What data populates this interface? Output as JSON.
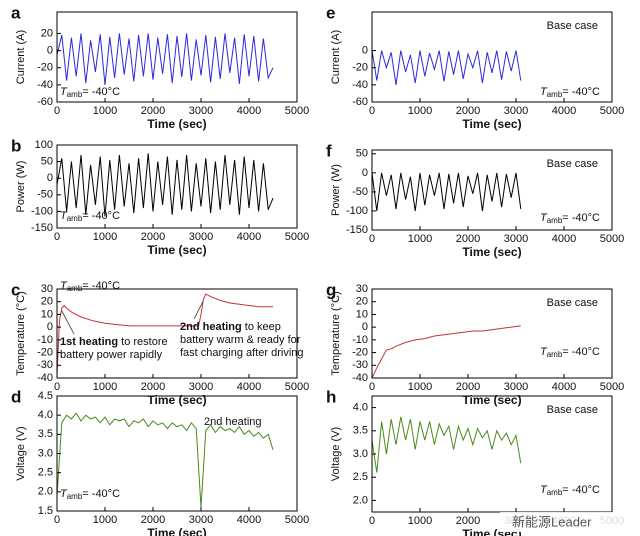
{
  "chart_data": [
    {
      "type": "line",
      "panel": "a",
      "ylabel": "Current (A)",
      "xlabel": "Time (sec)",
      "color": "#2a2ae0",
      "xlim": [
        0,
        5000
      ],
      "xticks": [
        0,
        1000,
        2000,
        3000,
        4000,
        5000
      ],
      "ylim": [
        -60,
        45
      ],
      "yticks": [
        -60,
        -40,
        -20,
        0,
        20
      ],
      "x": [
        0,
        100,
        200,
        300,
        400,
        500,
        600,
        700,
        800,
        900,
        1000,
        1100,
        1200,
        1300,
        1400,
        1500,
        1600,
        1700,
        1800,
        1900,
        2000,
        2100,
        2200,
        2300,
        2400,
        2500,
        2600,
        2700,
        2800,
        2900,
        3000,
        3100,
        3200,
        3300,
        3400,
        3500,
        3600,
        3700,
        3800,
        3900,
        4000,
        4100,
        4200,
        4300,
        4400,
        4500
      ],
      "values": [
        -5,
        18,
        -35,
        15,
        -30,
        20,
        -38,
        12,
        -25,
        19,
        -40,
        16,
        -32,
        20,
        -28,
        14,
        -36,
        18,
        -30,
        20,
        -34,
        15,
        -27,
        19,
        -38,
        17,
        -31,
        20,
        -35,
        13,
        -29,
        18,
        -37,
        16,
        -33,
        20,
        -26,
        15,
        -39,
        19,
        -30,
        17,
        -36,
        14,
        -32,
        -20
      ],
      "tamb": {
        "symbol": "T",
        "subscript": "amb",
        "text": "= -40°C"
      }
    },
    {
      "type": "line",
      "panel": "b",
      "ylabel": "Power (W)",
      "xlabel": "Time (sec)",
      "color": "#000000",
      "xlim": [
        0,
        5000
      ],
      "xticks": [
        0,
        1000,
        2000,
        3000,
        4000,
        5000
      ],
      "ylim": [
        -150,
        100
      ],
      "yticks": [
        -150,
        -100,
        -50,
        0,
        50,
        100
      ],
      "x": [
        0,
        100,
        200,
        300,
        400,
        500,
        600,
        700,
        800,
        900,
        1000,
        1100,
        1200,
        1300,
        1400,
        1500,
        1600,
        1700,
        1800,
        1900,
        2000,
        2100,
        2200,
        2300,
        2400,
        2500,
        2600,
        2700,
        2800,
        2900,
        3000,
        3100,
        3200,
        3300,
        3400,
        3500,
        3600,
        3700,
        3800,
        3900,
        4000,
        4100,
        4200,
        4300,
        4400,
        4500
      ],
      "values": [
        -20,
        60,
        -100,
        50,
        -90,
        70,
        -110,
        40,
        -80,
        65,
        -115,
        55,
        -95,
        70,
        -85,
        45,
        -105,
        60,
        -90,
        75,
        -100,
        50,
        -80,
        65,
        -110,
        55,
        -95,
        70,
        -100,
        45,
        -85,
        60,
        -105,
        50,
        -95,
        70,
        -80,
        55,
        -110,
        65,
        -90,
        55,
        -100,
        45,
        -95,
        -60
      ],
      "tamb": {
        "symbol": "T",
        "subscript": "amb",
        "text": "= -40°C"
      }
    },
    {
      "type": "line",
      "panel": "c",
      "ylabel": "Temperature (°C)",
      "xlabel": "Time (sec)",
      "color": "#c8323c",
      "xlim": [
        0,
        5000
      ],
      "xticks": [
        0,
        1000,
        2000,
        3000,
        4000,
        5000
      ],
      "ylim": [
        -40,
        30
      ],
      "yticks": [
        -40,
        -30,
        -20,
        -10,
        0,
        10,
        20,
        30
      ],
      "x": [
        0,
        50,
        100,
        150,
        200,
        300,
        500,
        750,
        1000,
        1250,
        1500,
        1750,
        2000,
        2250,
        2500,
        2750,
        2950,
        3000,
        3050,
        3100,
        3200,
        3400,
        3600,
        3800,
        4000,
        4200,
        4400,
        4500
      ],
      "values": [
        -38,
        5,
        15,
        17,
        15,
        12,
        8,
        5,
        3,
        2,
        1,
        1,
        1,
        1,
        1,
        1,
        1,
        10,
        22,
        26,
        24,
        21,
        19,
        18,
        17,
        16,
        16,
        16
      ],
      "tamb": {
        "symbol": "T",
        "subscript": "amb",
        "text": "= -40°C"
      },
      "notes": [
        {
          "bold": "1st heating",
          "lines": [
            " to restore",
            "battery power rapidly"
          ]
        },
        {
          "bold": "2nd heating",
          "lines": [
            " to keep",
            "battery warm & ready for",
            "fast charging after driving"
          ]
        }
      ]
    },
    {
      "type": "line",
      "panel": "d",
      "ylabel": "Voltage (V)",
      "xlabel": "Time (sec)",
      "color": "#4a8a1c",
      "xlim": [
        0,
        5000
      ],
      "xticks": [
        0,
        1000,
        2000,
        3000,
        4000,
        5000
      ],
      "ylim": [
        1.5,
        4.5
      ],
      "yticks": [
        1.5,
        {
          "value": 2,
          "label": "2.0"
        },
        2.5,
        {
          "value": 3,
          "label": "3.0"
        },
        3.5,
        {
          "value": 4,
          "label": "4.0"
        },
        4.5
      ],
      "x": [
        0,
        100,
        200,
        300,
        400,
        500,
        600,
        700,
        800,
        900,
        1000,
        1100,
        1200,
        1300,
        1400,
        1500,
        1600,
        1700,
        1800,
        1900,
        2000,
        2100,
        2200,
        2300,
        2400,
        2500,
        2600,
        2700,
        2800,
        2900,
        3000,
        3100,
        3200,
        3300,
        3400,
        3500,
        3600,
        3700,
        3800,
        3900,
        4000,
        4100,
        4200,
        4300,
        4400,
        4500
      ],
      "values": [
        1.9,
        3.8,
        4.0,
        3.9,
        4.05,
        3.85,
        4.0,
        3.9,
        3.95,
        3.8,
        3.95,
        3.75,
        3.9,
        3.85,
        3.9,
        3.7,
        3.85,
        3.8,
        3.9,
        3.7,
        3.85,
        3.75,
        3.8,
        3.65,
        3.8,
        3.7,
        3.75,
        3.6,
        3.8,
        3.65,
        1.6,
        3.6,
        3.75,
        3.55,
        3.7,
        3.6,
        3.65,
        3.55,
        3.7,
        3.5,
        3.6,
        3.45,
        3.55,
        3.4,
        3.5,
        3.1
      ],
      "tamb": {
        "symbol": "T",
        "subscript": "amb",
        "text": "= -40°C"
      },
      "note": "2nd heating"
    },
    {
      "type": "line",
      "panel": "e",
      "ylabel": "Current (A)",
      "xlabel": "Time (sec)",
      "color": "#2a2ae0",
      "case": "Base case",
      "xlim": [
        0,
        5000
      ],
      "xticks": [
        0,
        1000,
        2000,
        3000,
        4000,
        5000
      ],
      "ylim": [
        -60,
        45
      ],
      "yticks": [
        -60,
        -40,
        -20,
        0
      ],
      "x": [
        0,
        100,
        200,
        300,
        400,
        500,
        600,
        700,
        800,
        900,
        1000,
        1100,
        1200,
        1300,
        1400,
        1500,
        1600,
        1700,
        1800,
        1900,
        2000,
        2100,
        2200,
        2300,
        2400,
        2500,
        2600,
        2700,
        2800,
        2900,
        3000,
        3100
      ],
      "values": [
        0,
        -35,
        0,
        -20,
        -2,
        -40,
        0,
        -25,
        -5,
        -38,
        0,
        -30,
        -3,
        -22,
        0,
        -36,
        -1,
        -28,
        0,
        -33,
        -4,
        -20,
        0,
        -38,
        -2,
        -26,
        0,
        -34,
        -1,
        -24,
        0,
        -35
      ],
      "tamb": {
        "symbol": "T",
        "subscript": "amb",
        "text": "= -40°C"
      }
    },
    {
      "type": "line",
      "panel": "f",
      "ylabel": "Power (W)",
      "xlabel": "Time (sec)",
      "color": "#000000",
      "case": "Base case",
      "xlim": [
        0,
        5000
      ],
      "xticks": [
        0,
        1000,
        2000,
        3000,
        4000,
        5000
      ],
      "ylim": [
        -150,
        60
      ],
      "yticks": [
        -150,
        -100,
        -50,
        0,
        50
      ],
      "x": [
        0,
        100,
        200,
        300,
        400,
        500,
        600,
        700,
        800,
        900,
        1000,
        1100,
        1200,
        1300,
        1400,
        1500,
        1600,
        1700,
        1800,
        1900,
        2000,
        2100,
        2200,
        2300,
        2400,
        2500,
        2600,
        2700,
        2800,
        2900,
        3000,
        3100
      ],
      "values": [
        0,
        -100,
        0,
        -60,
        -5,
        -95,
        0,
        -70,
        -10,
        -100,
        0,
        -85,
        -5,
        -60,
        0,
        -95,
        -3,
        -80,
        0,
        -90,
        -8,
        -55,
        0,
        -100,
        -5,
        -75,
        0,
        -90,
        -3,
        -65,
        0,
        -95
      ],
      "tamb": {
        "symbol": "T",
        "subscript": "amb",
        "text": "= -40°C"
      }
    },
    {
      "type": "line",
      "panel": "g",
      "ylabel": "Temperature (°C)",
      "xlabel": "Time (sec)",
      "color": "#c8323c",
      "case": "Base case",
      "xlim": [
        0,
        5000
      ],
      "xticks": [
        0,
        1000,
        2000,
        3000,
        4000,
        5000
      ],
      "ylim": [
        -40,
        30
      ],
      "yticks": [
        -40,
        -30,
        -20,
        -10,
        0,
        10,
        20,
        30
      ],
      "x": [
        0,
        100,
        200,
        300,
        400,
        500,
        700,
        900,
        1100,
        1300,
        1500,
        1700,
        1900,
        2100,
        2300,
        2500,
        2700,
        2900,
        3100
      ],
      "values": [
        -40,
        -32,
        -25,
        -18,
        -17,
        -15,
        -12,
        -10,
        -9,
        -7,
        -6,
        -5,
        -4,
        -3,
        -3,
        -2,
        -1,
        0,
        1
      ],
      "tamb": {
        "symbol": "T",
        "subscript": "amb",
        "text": "= -40°C"
      }
    },
    {
      "type": "line",
      "panel": "h",
      "ylabel": "Voltage (V)",
      "xlabel": "Time (sec)",
      "color": "#4a8a1c",
      "case": "Base case",
      "xlim": [
        0,
        5000
      ],
      "xticks": [
        0,
        1000,
        2000,
        3000,
        4000,
        5000
      ],
      "ylim": [
        1.75,
        4.25
      ],
      "yticks": [
        {
          "value": 2,
          "label": "2.0"
        },
        2.5,
        {
          "value": 3,
          "label": "3.0"
        },
        3.5,
        {
          "value": 4,
          "label": "4.0"
        }
      ],
      "x": [
        0,
        100,
        200,
        300,
        400,
        500,
        600,
        700,
        800,
        900,
        1000,
        1100,
        1200,
        1300,
        1400,
        1500,
        1600,
        1700,
        1800,
        1900,
        2000,
        2100,
        2200,
        2300,
        2400,
        2500,
        2600,
        2700,
        2800,
        2900,
        3000,
        3100
      ],
      "values": [
        3.3,
        2.6,
        3.7,
        3.0,
        3.75,
        3.2,
        3.8,
        3.3,
        3.75,
        3.1,
        3.7,
        3.3,
        3.7,
        3.2,
        3.65,
        3.4,
        3.6,
        3.1,
        3.6,
        3.3,
        3.55,
        3.2,
        3.55,
        3.35,
        3.5,
        3.1,
        3.5,
        3.3,
        3.45,
        3.2,
        3.4,
        2.8
      ],
      "tamb": {
        "symbol": "T",
        "subscript": "amb",
        "text": "= -40°C"
      },
      "watermark": "新能源Leader"
    }
  ]
}
